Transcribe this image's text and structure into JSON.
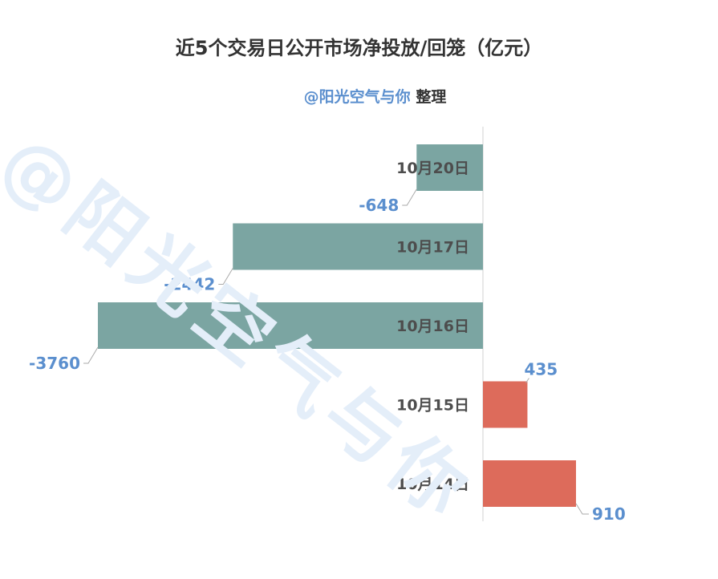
{
  "title": "近5个交易日公开市场净投放/回笼（亿元）",
  "credit": {
    "handle": "@阳光空气与你",
    "suffix": "整理"
  },
  "watermark": "@阳光空气与你",
  "colors": {
    "negative": "#7ba5a2",
    "positive": "#dd6b5b",
    "value_label": "#5b8fce",
    "category_label": "#4d4d4d",
    "axis": "#d0d0d0",
    "leader": "#aaaaaa"
  },
  "chart_data": {
    "type": "bar",
    "orientation": "horizontal",
    "categories": [
      "10月20日",
      "10月17日",
      "10月16日",
      "10月15日",
      "10月14日"
    ],
    "values": [
      -648,
      -2442,
      -3760,
      435,
      910
    ],
    "title": "近5个交易日公开市场净投放/回笼（亿元）",
    "xlabel": "",
    "ylabel": "",
    "xlim": [
      -3760,
      910
    ],
    "grid": false,
    "legend": "none"
  }
}
